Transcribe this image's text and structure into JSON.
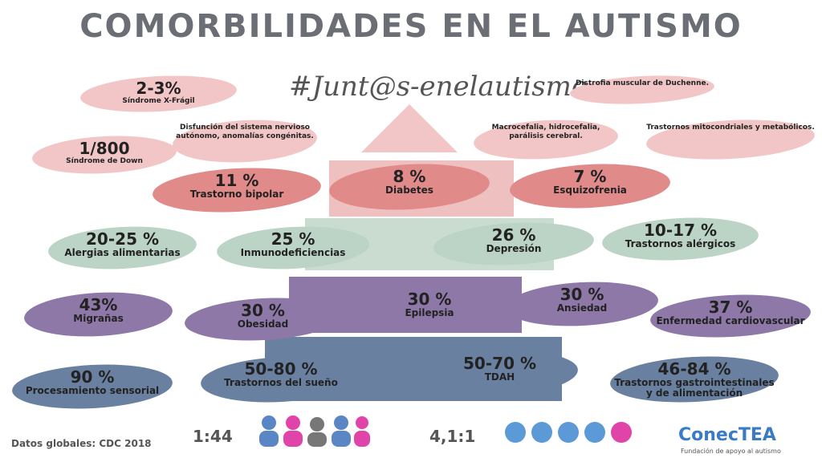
{
  "title": "COMORBILIDADES EN EL AUTISMO",
  "hashtag": "#Junt@s-enelautismo",
  "items": [
    {
      "value": "2-3%",
      "label": "Síndrome X-Frágil"
    },
    {
      "value": "1/800",
      "label": "Síndrome de Down"
    },
    {
      "label": "Disfunción del sistema nervioso autónomo, anomalías congénitas."
    },
    {
      "label": "Distrofia muscular de Duchenne."
    },
    {
      "label": "Macrocefalia, hidrocefalia, parálisis cerebral."
    },
    {
      "label": "Trastornos mitocondriales y metabólicos."
    },
    {
      "value": "11 %",
      "label": "Trastorno bipolar"
    },
    {
      "value": "8 %",
      "label": "Diabetes"
    },
    {
      "value": "7 %",
      "label": "Esquizofrenia"
    },
    {
      "value": "20-25 %",
      "label": "Alergias alimentarias"
    },
    {
      "value": "25 %",
      "label": "Inmunodeficiencias"
    },
    {
      "value": "26 %",
      "label": "Depresión"
    },
    {
      "value": "10-17 %",
      "label": "Trastornos alérgicos"
    },
    {
      "value": "43%",
      "label": "Migrañas"
    },
    {
      "value": "30 %",
      "label": "Obesidad"
    },
    {
      "value": "30 %",
      "label": "Epilepsia"
    },
    {
      "value": "30 %",
      "label": "Ansiedad"
    },
    {
      "value": "37 %",
      "label": "Enfermedad cardiovascular"
    },
    {
      "value": "90 %",
      "label": "Procesamiento sensorial"
    },
    {
      "value": "50-80 %",
      "label": "Trastornos del sueño"
    },
    {
      "value": "50-70 %",
      "label": "TDAH"
    },
    {
      "value": "46-84 %",
      "label": "Trastornos gastrointestinales y de alimentación"
    }
  ],
  "footer": {
    "source": "Datos globales: CDC 2018",
    "ratio1": "1:44",
    "ratio2": "4,1:1",
    "logo": "ConecTEA",
    "logo_subtitle": "Fundación de apoyo al autismo"
  }
}
